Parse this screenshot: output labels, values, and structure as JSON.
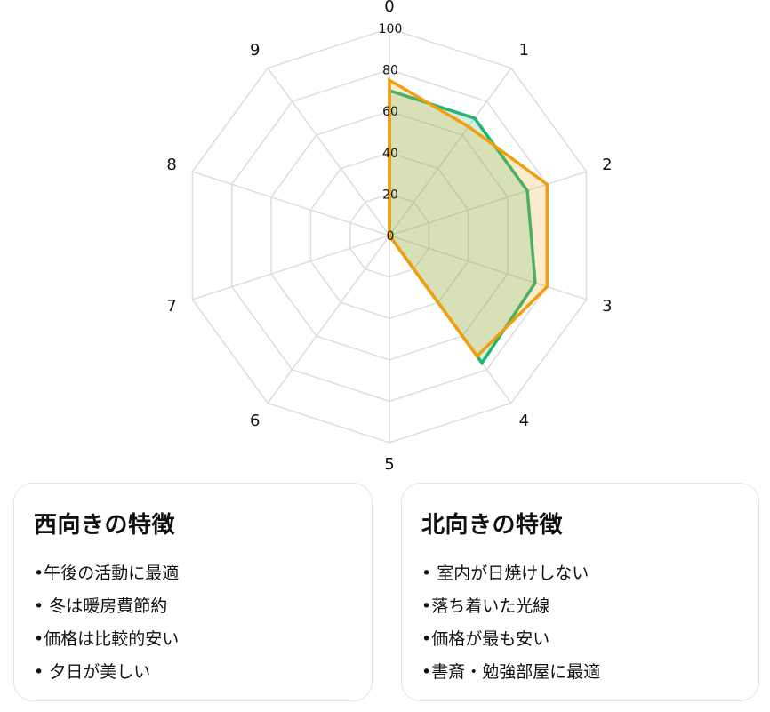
{
  "chart_data": {
    "type": "radar",
    "axes": [
      "0",
      "1",
      "2",
      "3",
      "4",
      "5",
      "6",
      "7",
      "8",
      "9"
    ],
    "rlim": [
      0,
      100
    ],
    "ticks": [
      "0",
      "20",
      "40",
      "60",
      "80",
      "100"
    ],
    "grid": true,
    "series": [
      {
        "values": [
          70,
          70,
          70,
          74,
          76,
          0,
          0,
          0,
          0,
          0
        ],
        "color": "#22b574"
      },
      {
        "values": [
          75,
          65,
          80,
          80,
          72,
          0,
          0,
          0,
          0,
          0
        ],
        "color": "#f29e0d"
      }
    ]
  },
  "cards": [
    {
      "title": "西向きの特徴",
      "items": [
        "•午後の活動に最適",
        "• 冬は暖房費節約",
        "•価格は比較的安い",
        "• 夕日が美しい"
      ]
    },
    {
      "title": "北向きの特徴",
      "items": [
        "• 室内が日焼けしない",
        "•落ち着いた光線",
        "•価格が最も安い",
        "•書斎・勉強部屋に最適"
      ]
    }
  ]
}
